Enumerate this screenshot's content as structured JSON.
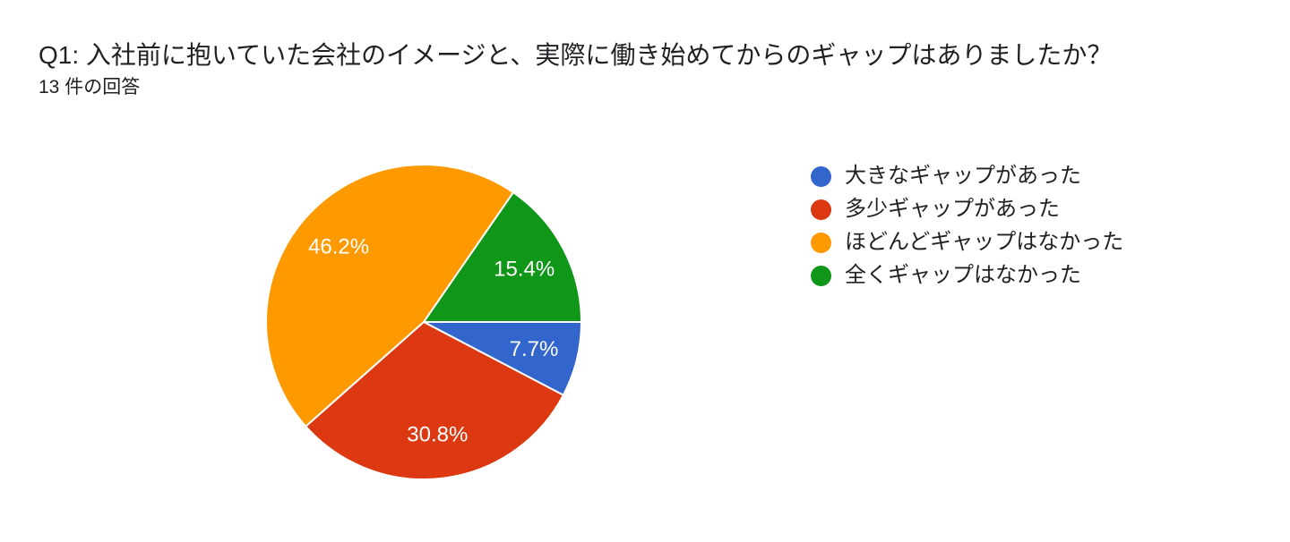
{
  "header": {
    "title": "Q1: 入社前に抱いていた会社のイメージと、実際に働き始めてからのギャップはありましたか？",
    "response_count": "13 件の回答"
  },
  "chart_data": {
    "type": "pie",
    "title": "Q1: 入社前に抱いていた会社のイメージと、実際に働き始めてからのギャップはありましたか？",
    "subtitle": "13 件の回答",
    "legend_position": "right",
    "start_angle_deg": 0,
    "direction": "clockwise",
    "background_color": "#ffffff",
    "label_text_color": "#ffffff",
    "slices": [
      {
        "label": "大きなギャップがあった",
        "value": 7.7,
        "percent_label": "7.7%",
        "color": "#3366CC"
      },
      {
        "label": "多少ギャップがあった",
        "value": 30.8,
        "percent_label": "30.8%",
        "color": "#DC3912"
      },
      {
        "label": "ほどんどギャップはなかった",
        "value": 46.2,
        "percent_label": "46.2%",
        "color": "#FF9900"
      },
      {
        "label": "全くギャップはなかった",
        "value": 15.4,
        "percent_label": "15.4%",
        "color": "#109618"
      }
    ]
  }
}
